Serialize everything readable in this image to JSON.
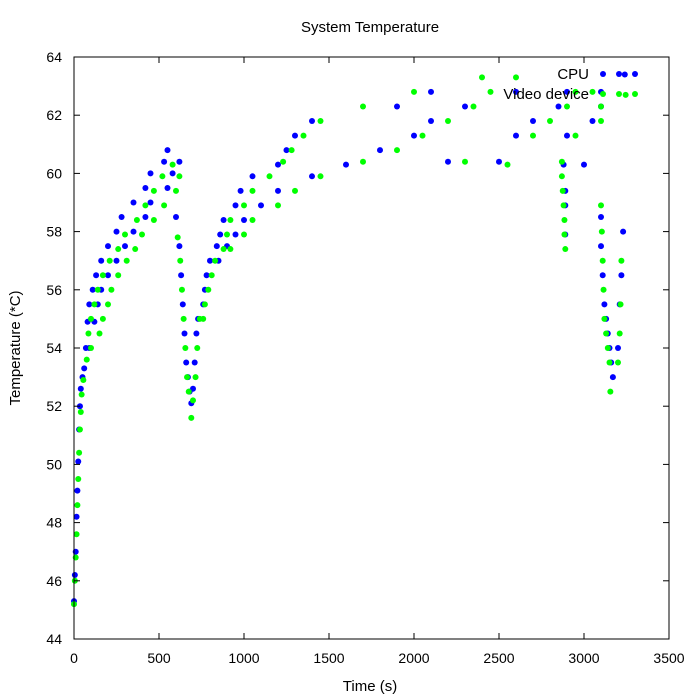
{
  "chart_data": {
    "type": "scatter",
    "title": "System Temperature",
    "xlabel": "Time (s)",
    "ylabel": "Temperature (*C)",
    "xlim": [
      0,
      3500
    ],
    "ylim": [
      44,
      64
    ],
    "xticks": [
      0,
      500,
      1000,
      1500,
      2000,
      2500,
      3000,
      3500
    ],
    "yticks": [
      44,
      46,
      48,
      50,
      52,
      54,
      56,
      58,
      60,
      62,
      64
    ],
    "grid": false,
    "legend_position": "top-right",
    "series": [
      {
        "name": "CPU",
        "color": "#0000ff",
        "points": [
          [
            0,
            45.3
          ],
          [
            5,
            46.2
          ],
          [
            10,
            47.0
          ],
          [
            15,
            48.2
          ],
          [
            20,
            49.1
          ],
          [
            25,
            50.1
          ],
          [
            30,
            51.2
          ],
          [
            35,
            52.0
          ],
          [
            40,
            52.6
          ],
          [
            50,
            53.0
          ],
          [
            60,
            53.3
          ],
          [
            70,
            54.0
          ],
          [
            90,
            54.0
          ],
          [
            80,
            54.9
          ],
          [
            120,
            54.9
          ],
          [
            90,
            55.5
          ],
          [
            140,
            55.5
          ],
          [
            110,
            56.0
          ],
          [
            160,
            56.0
          ],
          [
            130,
            56.5
          ],
          [
            200,
            56.5
          ],
          [
            160,
            57.0
          ],
          [
            250,
            57.0
          ],
          [
            200,
            57.5
          ],
          [
            300,
            57.5
          ],
          [
            250,
            58.0
          ],
          [
            350,
            58.0
          ],
          [
            280,
            58.5
          ],
          [
            420,
            58.5
          ],
          [
            350,
            59.0
          ],
          [
            450,
            59.0
          ],
          [
            420,
            59.5
          ],
          [
            550,
            59.5
          ],
          [
            450,
            60.0
          ],
          [
            580,
            60.0
          ],
          [
            530,
            60.4
          ],
          [
            620,
            60.4
          ],
          [
            550,
            60.8
          ],
          [
            600,
            58.5
          ],
          [
            620,
            57.5
          ],
          [
            630,
            56.5
          ],
          [
            640,
            55.5
          ],
          [
            650,
            54.5
          ],
          [
            660,
            53.5
          ],
          [
            670,
            53.0
          ],
          [
            680,
            52.5
          ],
          [
            690,
            52.1
          ],
          [
            700,
            52.6
          ],
          [
            710,
            53.5
          ],
          [
            720,
            54.5
          ],
          [
            730,
            55.0
          ],
          [
            760,
            55.5
          ],
          [
            770,
            56.0
          ],
          [
            780,
            56.5
          ],
          [
            800,
            57.0
          ],
          [
            850,
            57.0
          ],
          [
            840,
            57.5
          ],
          [
            900,
            57.5
          ],
          [
            860,
            57.9
          ],
          [
            950,
            57.9
          ],
          [
            880,
            58.4
          ],
          [
            1000,
            58.4
          ],
          [
            950,
            58.9
          ],
          [
            1100,
            58.9
          ],
          [
            980,
            59.4
          ],
          [
            1200,
            59.4
          ],
          [
            1050,
            59.9
          ],
          [
            1400,
            59.9
          ],
          [
            1200,
            60.3
          ],
          [
            1600,
            60.3
          ],
          [
            1250,
            60.8
          ],
          [
            1800,
            60.8
          ],
          [
            1300,
            61.3
          ],
          [
            2000,
            61.3
          ],
          [
            1400,
            61.8
          ],
          [
            2100,
            61.8
          ],
          [
            1900,
            62.3
          ],
          [
            2300,
            62.3
          ],
          [
            2100,
            62.8
          ],
          [
            2600,
            62.8
          ],
          [
            2200,
            60.4
          ],
          [
            2500,
            60.4
          ],
          [
            2600,
            61.3
          ],
          [
            2900,
            61.3
          ],
          [
            2700,
            61.8
          ],
          [
            3050,
            61.8
          ],
          [
            2850,
            62.3
          ],
          [
            3100,
            62.3
          ],
          [
            2900,
            62.8
          ],
          [
            3100,
            62.8
          ],
          [
            2880,
            60.3
          ],
          [
            3000,
            60.3
          ],
          [
            2890,
            59.4
          ],
          [
            2890,
            58.9
          ],
          [
            2890,
            57.9
          ],
          [
            3100,
            58.5
          ],
          [
            3100,
            57.5
          ],
          [
            3110,
            56.5
          ],
          [
            3120,
            55.5
          ],
          [
            3130,
            55.0
          ],
          [
            3140,
            54.5
          ],
          [
            3150,
            54.0
          ],
          [
            3160,
            53.5
          ],
          [
            3170,
            53.0
          ],
          [
            3200,
            54.0
          ],
          [
            3210,
            55.5
          ],
          [
            3220,
            56.5
          ],
          [
            3230,
            58.0
          ],
          [
            3240,
            63.4
          ]
        ]
      },
      {
        "name": "Video device",
        "color": "#00ff00",
        "points": [
          [
            0,
            45.2
          ],
          [
            5,
            46.0
          ],
          [
            10,
            46.8
          ],
          [
            15,
            47.6
          ],
          [
            20,
            48.6
          ],
          [
            25,
            49.5
          ],
          [
            30,
            50.4
          ],
          [
            35,
            51.2
          ],
          [
            40,
            51.8
          ],
          [
            45,
            52.4
          ],
          [
            55,
            52.9
          ],
          [
            75,
            53.6
          ],
          [
            100,
            54.0
          ],
          [
            85,
            54.5
          ],
          [
            150,
            54.5
          ],
          [
            100,
            55.0
          ],
          [
            170,
            55.0
          ],
          [
            120,
            55.5
          ],
          [
            200,
            55.5
          ],
          [
            140,
            56.0
          ],
          [
            220,
            56.0
          ],
          [
            170,
            56.5
          ],
          [
            260,
            56.5
          ],
          [
            210,
            57.0
          ],
          [
            310,
            57.0
          ],
          [
            260,
            57.4
          ],
          [
            360,
            57.4
          ],
          [
            300,
            57.9
          ],
          [
            400,
            57.9
          ],
          [
            370,
            58.4
          ],
          [
            470,
            58.4
          ],
          [
            420,
            58.9
          ],
          [
            530,
            58.9
          ],
          [
            470,
            59.4
          ],
          [
            600,
            59.4
          ],
          [
            520,
            59.9
          ],
          [
            620,
            59.9
          ],
          [
            580,
            60.3
          ],
          [
            610,
            57.8
          ],
          [
            625,
            57.0
          ],
          [
            635,
            56.0
          ],
          [
            645,
            55.0
          ],
          [
            655,
            54.0
          ],
          [
            665,
            53.0
          ],
          [
            675,
            52.5
          ],
          [
            690,
            51.6
          ],
          [
            700,
            52.2
          ],
          [
            715,
            53.0
          ],
          [
            725,
            54.0
          ],
          [
            740,
            55.0
          ],
          [
            760,
            55.0
          ],
          [
            770,
            55.5
          ],
          [
            790,
            56.0
          ],
          [
            810,
            56.5
          ],
          [
            830,
            57.0
          ],
          [
            880,
            57.4
          ],
          [
            920,
            57.4
          ],
          [
            900,
            57.9
          ],
          [
            1000,
            57.9
          ],
          [
            920,
            58.4
          ],
          [
            1050,
            58.4
          ],
          [
            1000,
            58.9
          ],
          [
            1200,
            58.9
          ],
          [
            1050,
            59.4
          ],
          [
            1300,
            59.4
          ],
          [
            1150,
            59.9
          ],
          [
            1450,
            59.9
          ],
          [
            1230,
            60.4
          ],
          [
            1700,
            60.4
          ],
          [
            1280,
            60.8
          ],
          [
            1900,
            60.8
          ],
          [
            1350,
            61.3
          ],
          [
            2050,
            61.3
          ],
          [
            1450,
            61.8
          ],
          [
            2200,
            61.8
          ],
          [
            1700,
            62.3
          ],
          [
            2350,
            62.3
          ],
          [
            2000,
            62.8
          ],
          [
            2450,
            62.8
          ],
          [
            2400,
            63.3
          ],
          [
            2600,
            63.3
          ],
          [
            2300,
            60.4
          ],
          [
            2550,
            60.3
          ],
          [
            2700,
            61.3
          ],
          [
            2950,
            61.3
          ],
          [
            2800,
            61.8
          ],
          [
            3100,
            61.8
          ],
          [
            2900,
            62.3
          ],
          [
            3100,
            62.3
          ],
          [
            2950,
            62.8
          ],
          [
            3050,
            62.8
          ],
          [
            2870,
            60.4
          ],
          [
            2870,
            59.9
          ],
          [
            2875,
            59.4
          ],
          [
            2880,
            58.9
          ],
          [
            2885,
            58.4
          ],
          [
            2885,
            57.9
          ],
          [
            2890,
            57.4
          ],
          [
            3100,
            58.9
          ],
          [
            3105,
            58.0
          ],
          [
            3110,
            57.0
          ],
          [
            3115,
            56.0
          ],
          [
            3120,
            55.0
          ],
          [
            3130,
            54.5
          ],
          [
            3140,
            54.0
          ],
          [
            3150,
            53.5
          ],
          [
            3155,
            52.5
          ],
          [
            3200,
            53.5
          ],
          [
            3210,
            54.5
          ],
          [
            3215,
            55.5
          ],
          [
            3220,
            57.0
          ],
          [
            3245,
            62.7
          ]
        ]
      }
    ]
  }
}
